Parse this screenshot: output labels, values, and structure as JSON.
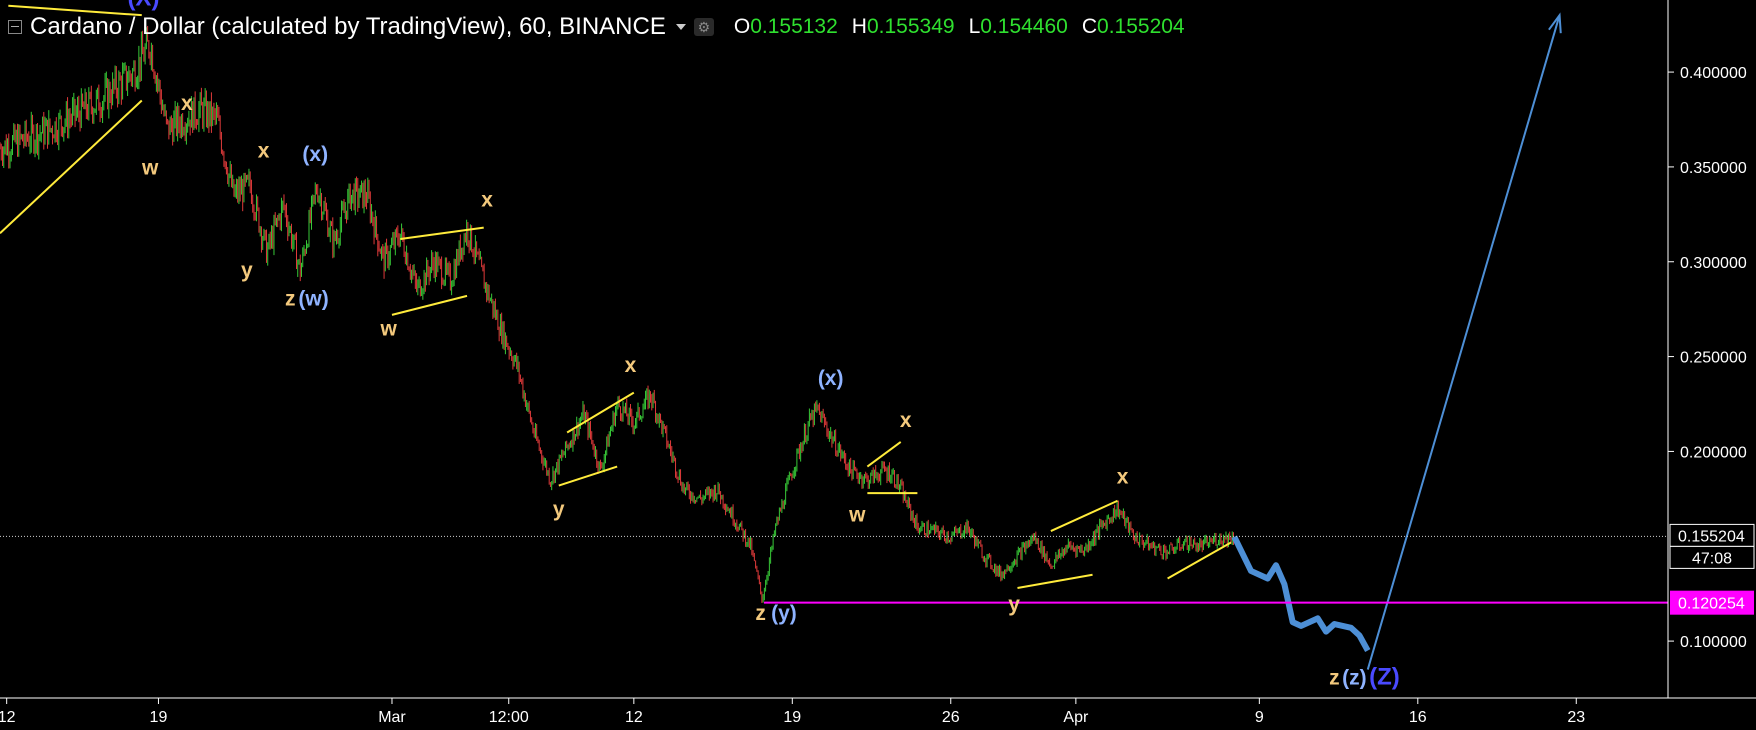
{
  "header": {
    "title": "Cardano / Dollar (calculated by TradingView), 60, BINANCE",
    "ohlc": [
      {
        "key": "O",
        "value": "0.155132"
      },
      {
        "key": "H",
        "value": "0.155349"
      },
      {
        "key": "L",
        "value": "0.154460"
      },
      {
        "key": "C",
        "value": "0.155204"
      }
    ]
  },
  "colors": {
    "background": "#000000",
    "up": "#37c837",
    "down": "#e03a3a",
    "trend_line": "#ffeb3b",
    "wave_minor": "#f3c97d",
    "wave_major": "#8fb3ff",
    "wave_top": "#4a4aff",
    "projection": "#4d8fd6",
    "support": "#ff00ff",
    "price_line": "#cfcfcf"
  },
  "icons": [
    "collapse-icon",
    "dropdown-caret-icon",
    "settings-icon"
  ],
  "chart_data": {
    "type": "candlestick",
    "x_tick_labels": [
      "12",
      "19",
      "Mar",
      "12:00",
      "12",
      "19",
      "26",
      "Apr",
      "9",
      "16",
      "23"
    ],
    "y_tick_labels": [
      "0.400000",
      "0.350000",
      "0.300000",
      "0.250000",
      "0.200000",
      "0.100000"
    ],
    "y_ticks": [
      0.4,
      0.35,
      0.3,
      0.25,
      0.2,
      0.1
    ],
    "ylim": [
      0.07,
      0.438
    ],
    "price_path": [
      [
        0,
        0.36
      ],
      [
        3,
        0.37
      ],
      [
        6,
        0.385
      ],
      [
        8,
        0.4
      ],
      [
        9,
        0.415
      ],
      [
        10,
        0.37
      ],
      [
        12,
        0.38
      ],
      [
        13,
        0.375
      ],
      [
        14,
        0.335
      ],
      [
        15,
        0.34
      ],
      [
        16,
        0.305
      ],
      [
        17,
        0.33
      ],
      [
        18,
        0.295
      ],
      [
        19,
        0.34
      ],
      [
        20,
        0.31
      ],
      [
        21,
        0.335
      ],
      [
        22,
        0.335
      ],
      [
        23,
        0.3
      ],
      [
        24,
        0.315
      ],
      [
        25,
        0.285
      ],
      [
        26,
        0.3
      ],
      [
        27,
        0.29
      ],
      [
        28,
        0.318
      ],
      [
        29,
        0.29
      ],
      [
        30,
        0.265
      ],
      [
        31,
        0.245
      ],
      [
        32,
        0.21
      ],
      [
        33,
        0.185
      ],
      [
        35,
        0.22
      ],
      [
        36,
        0.19
      ],
      [
        37,
        0.225
      ],
      [
        38,
        0.215
      ],
      [
        39,
        0.23
      ],
      [
        40,
        0.205
      ],
      [
        41,
        0.18
      ],
      [
        42,
        0.175
      ],
      [
        43,
        0.18
      ],
      [
        44,
        0.165
      ],
      [
        45,
        0.15
      ],
      [
        45.7,
        0.122
      ],
      [
        46.5,
        0.16
      ],
      [
        47.5,
        0.19
      ],
      [
        48.5,
        0.215
      ],
      [
        49,
        0.222
      ],
      [
        50,
        0.205
      ],
      [
        51,
        0.19
      ],
      [
        52,
        0.185
      ],
      [
        53,
        0.19
      ],
      [
        53.5,
        0.188
      ],
      [
        54,
        0.18
      ],
      [
        55,
        0.16
      ],
      [
        56,
        0.158
      ],
      [
        57,
        0.155
      ],
      [
        58,
        0.16
      ],
      [
        59,
        0.145
      ],
      [
        60,
        0.135
      ],
      [
        61,
        0.145
      ],
      [
        62,
        0.155
      ],
      [
        63,
        0.14
      ],
      [
        64,
        0.15
      ],
      [
        65,
        0.148
      ],
      [
        66,
        0.16
      ],
      [
        67,
        0.17
      ],
      [
        68,
        0.155
      ],
      [
        69,
        0.15
      ],
      [
        70,
        0.147
      ],
      [
        71,
        0.152
      ],
      [
        72,
        0.15
      ],
      [
        73,
        0.154
      ],
      [
        74,
        0.155
      ]
    ],
    "projection_path": [
      [
        74,
        0.155
      ],
      [
        75,
        0.137
      ],
      [
        76,
        0.133
      ],
      [
        76.5,
        0.14
      ],
      [
        77,
        0.13
      ],
      [
        77.5,
        0.11
      ],
      [
        78,
        0.108
      ],
      [
        79,
        0.112
      ],
      [
        79.5,
        0.105
      ],
      [
        80,
        0.109
      ],
      [
        81,
        0.107
      ],
      [
        81.5,
        0.103
      ],
      [
        82,
        0.095
      ]
    ],
    "projection_arrow": [
      [
        82,
        0.085
      ],
      [
        93.5,
        0.43
      ]
    ],
    "trend_lines": [
      [
        [
          0,
          0.315
        ],
        [
          8.5,
          0.385
        ]
      ],
      [
        [
          0.5,
          0.435
        ],
        [
          8.5,
          0.43
        ]
      ],
      [
        [
          24,
          0.312
        ],
        [
          29,
          0.318
        ]
      ],
      [
        [
          23.5,
          0.272
        ],
        [
          28,
          0.282
        ]
      ],
      [
        [
          34,
          0.21
        ],
        [
          38,
          0.231
        ]
      ],
      [
        [
          33.5,
          0.182
        ],
        [
          37,
          0.192
        ]
      ],
      [
        [
          52,
          0.192
        ],
        [
          54,
          0.205
        ]
      ],
      [
        [
          52,
          0.178
        ],
        [
          55,
          0.178
        ]
      ],
      [
        [
          63,
          0.158
        ],
        [
          67,
          0.174
        ]
      ],
      [
        [
          61,
          0.128
        ],
        [
          65.5,
          0.135
        ]
      ],
      [
        [
          70,
          0.133
        ],
        [
          73.8,
          0.152
        ]
      ]
    ],
    "support_line": {
      "value": 0.120254,
      "label": "0.120254",
      "from": 45.8
    },
    "last_price": {
      "value": 0.155204,
      "label": "0.155204",
      "countdown": "47:08"
    },
    "wave_labels": [
      {
        "text": "(X)",
        "x": 8.6,
        "y": 0.435,
        "style": "top"
      },
      {
        "text": "x",
        "x": 11.2,
        "y": 0.38,
        "style": "minor"
      },
      {
        "text": "w",
        "x": 9.0,
        "y": 0.346,
        "style": "minor"
      },
      {
        "text": "x",
        "x": 15.8,
        "y": 0.355,
        "style": "minor"
      },
      {
        "text": "(x)",
        "x": 18.9,
        "y": 0.353,
        "style": "major"
      },
      {
        "text": "y",
        "x": 14.8,
        "y": 0.292,
        "style": "minor"
      },
      {
        "text": "z",
        "x": 17.4,
        "y": 0.277,
        "style": "minor"
      },
      {
        "text": "(w)",
        "x": 18.8,
        "y": 0.277,
        "style": "major"
      },
      {
        "text": "x",
        "x": 29.2,
        "y": 0.329,
        "style": "minor"
      },
      {
        "text": "w",
        "x": 23.3,
        "y": 0.261,
        "style": "minor"
      },
      {
        "text": "x",
        "x": 37.8,
        "y": 0.242,
        "style": "minor"
      },
      {
        "text": "y",
        "x": 33.5,
        "y": 0.166,
        "style": "minor"
      },
      {
        "text": "(x)",
        "x": 49.8,
        "y": 0.235,
        "style": "major"
      },
      {
        "text": "x",
        "x": 54.3,
        "y": 0.213,
        "style": "minor"
      },
      {
        "text": "w",
        "x": 51.4,
        "y": 0.163,
        "style": "minor"
      },
      {
        "text": "z",
        "x": 45.6,
        "y": 0.111,
        "style": "minor"
      },
      {
        "text": "(y)",
        "x": 47.0,
        "y": 0.111,
        "style": "major"
      },
      {
        "text": "x",
        "x": 67.3,
        "y": 0.183,
        "style": "minor"
      },
      {
        "text": "y",
        "x": 60.8,
        "y": 0.116,
        "style": "minor"
      },
      {
        "text": "z",
        "x": 80.0,
        "y": 0.077,
        "style": "minor"
      },
      {
        "text": "(z)",
        "x": 81.2,
        "y": 0.077,
        "style": "major"
      },
      {
        "text": "(Z)",
        "x": 83.0,
        "y": 0.077,
        "style": "top"
      }
    ]
  }
}
